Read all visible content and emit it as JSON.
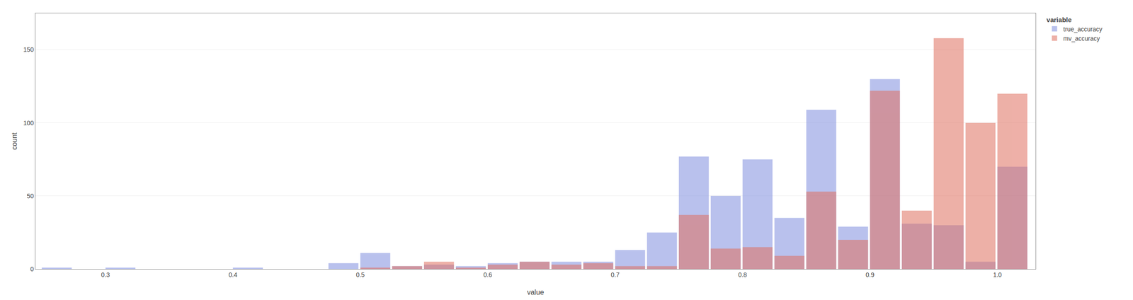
{
  "chart_data": {
    "type": "bar",
    "x": [
      0.25,
      0.275,
      0.3,
      0.325,
      0.35,
      0.375,
      0.4,
      0.425,
      0.45,
      0.475,
      0.5,
      0.525,
      0.55,
      0.575,
      0.6,
      0.625,
      0.65,
      0.675,
      0.7,
      0.725,
      0.75,
      0.775,
      0.8,
      0.825,
      0.85,
      0.875,
      0.9,
      0.925,
      0.95,
      0.975,
      1.0
    ],
    "series": [
      {
        "name": "true_accuracy",
        "color": "#8090e0",
        "values": [
          1,
          0,
          1,
          0,
          0,
          0,
          1,
          0,
          0,
          4,
          11,
          2,
          3,
          2,
          4,
          5,
          5,
          5,
          13,
          25,
          77,
          50,
          75,
          35,
          109,
          29,
          130,
          31,
          30,
          5,
          70
        ]
      },
      {
        "name": "mv_accuracy",
        "color": "#e07060",
        "values": [
          0,
          0,
          0,
          0,
          0,
          0,
          0,
          0,
          0,
          0,
          1,
          2,
          5,
          1,
          3,
          5,
          3,
          4,
          2,
          2,
          37,
          14,
          15,
          9,
          53,
          20,
          122,
          40,
          158,
          100,
          120
        ]
      }
    ],
    "xlabel": "value",
    "ylabel": "count",
    "legend_title": "variable",
    "xlim": [
      0.245,
      1.03
    ],
    "ylim": [
      0,
      175
    ],
    "xticks": [
      0.3,
      0.4,
      0.5,
      0.6,
      0.7,
      0.8,
      0.9,
      {
        "value": 1.0,
        "label": "1.0"
      }
    ],
    "yticks": [
      0,
      50,
      100,
      150
    ],
    "grid": true,
    "stacked": false,
    "legend": "right"
  }
}
